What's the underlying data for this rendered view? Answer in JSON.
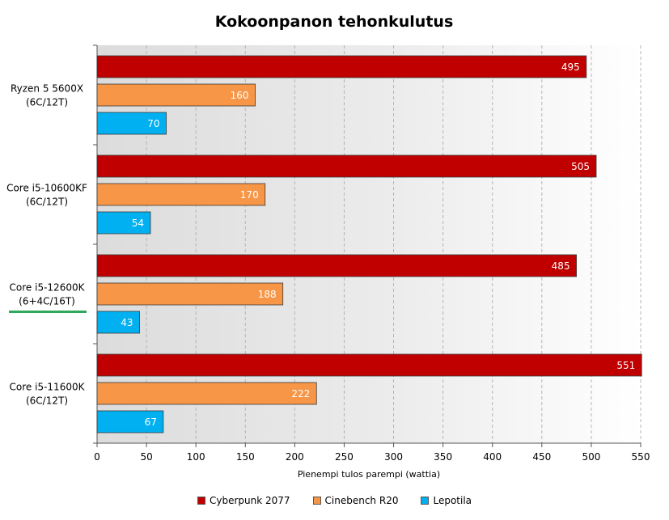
{
  "chart_data": {
    "type": "bar",
    "orientation": "horizontal",
    "title": "Kokoonpanon tehonkulutus",
    "xlabel": "Pienempi tulos parempi (wattia)",
    "ylabel": "",
    "xlim": [
      0,
      550
    ],
    "x_ticks": [
      "0",
      "50",
      "100",
      "150",
      "200",
      "250",
      "300",
      "350",
      "400",
      "450",
      "500",
      "550"
    ],
    "grid": true,
    "legend_position": "bottom",
    "categories": [
      {
        "line1": "Ryzen 5 5600X",
        "line2": "(6C/12T)",
        "highlighted": false
      },
      {
        "line1": "Core i5-10600KF",
        "line2": "(6C/12T)",
        "highlighted": false
      },
      {
        "line1": "Core i5-12600K",
        "line2": "(6+4C/16T)",
        "highlighted": true
      },
      {
        "line1": "Core i5-11600K",
        "line2": "(6C/12T)",
        "highlighted": false
      }
    ],
    "series": [
      {
        "name": "Cyberpunk 2077",
        "color": "#c00000",
        "values": [
          495,
          505,
          485,
          551
        ]
      },
      {
        "name": "Cinebench R20",
        "color": "#f79646",
        "values": [
          160,
          170,
          188,
          222
        ]
      },
      {
        "name": "Lepotila",
        "color": "#00b0f0",
        "values": [
          70,
          54,
          43,
          67
        ]
      }
    ],
    "highlight_color": "#2ea85a"
  }
}
